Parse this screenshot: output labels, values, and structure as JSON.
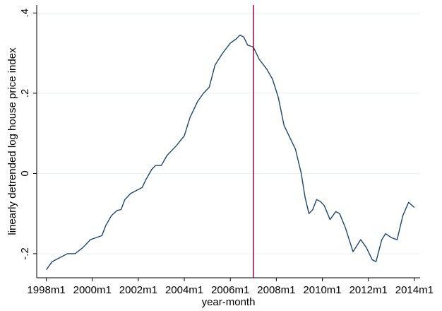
{
  "chart_data": {
    "type": "line",
    "xlabel": "year-month",
    "ylabel": "linearly detrended log house price index",
    "x": [
      "1998m1",
      "1998m4",
      "1998m8",
      "1998m12",
      "1999m4",
      "1999m8",
      "1999m12",
      "2000m3",
      "2000m6",
      "2000m8",
      "2000m11",
      "2001m2",
      "2001m4",
      "2001m6",
      "2001m9",
      "2002m1",
      "2002m3",
      "2002m5",
      "2002m8",
      "2002m10",
      "2003m1",
      "2003m4",
      "2003m9",
      "2004m1",
      "2004m4",
      "2004m8",
      "2004m11",
      "2005m2",
      "2005m5",
      "2005m9",
      "2006m1",
      "2006m4",
      "2006m6",
      "2006m8",
      "2006m10",
      "2007m1",
      "2007m4",
      "2007m8",
      "2007m11",
      "2008m2",
      "2008m5",
      "2008m8",
      "2008m11",
      "2009m2",
      "2009m4",
      "2009m6",
      "2009m8",
      "2009m10",
      "2009m12",
      "2010m2",
      "2010m5",
      "2010m8",
      "2010m10",
      "2011m1",
      "2011m3",
      "2011m5",
      "2011m9",
      "2011m12",
      "2012m3",
      "2012m5",
      "2012m8",
      "2012m10",
      "2013m1",
      "2013m4",
      "2013m7",
      "2013m10",
      "2014m1"
    ],
    "series": [
      {
        "color": "#1a476f",
        "values": [
          -0.24,
          -0.22,
          -0.21,
          -0.2,
          -0.2,
          -0.185,
          -0.165,
          -0.16,
          -0.155,
          -0.13,
          -0.105,
          -0.092,
          -0.09,
          -0.065,
          -0.05,
          -0.04,
          -0.035,
          -0.015,
          0.01,
          0.02,
          0.02,
          0.045,
          0.07,
          0.094,
          0.14,
          0.18,
          0.2,
          0.215,
          0.27,
          0.3,
          0.325,
          0.335,
          0.345,
          0.34,
          0.32,
          0.315,
          0.285,
          0.26,
          0.235,
          0.19,
          0.12,
          0.09,
          0.06,
          0.0,
          -0.06,
          -0.1,
          -0.09,
          -0.065,
          -0.07,
          -0.08,
          -0.115,
          -0.095,
          -0.1,
          -0.135,
          -0.165,
          -0.195,
          -0.165,
          -0.185,
          -0.215,
          -0.22,
          -0.165,
          -0.15,
          -0.16,
          -0.165,
          -0.105,
          -0.072,
          -0.085
        ]
      }
    ],
    "xlim": [
      "1997m8",
      "2014m4"
    ],
    "xticks": [
      "1998m1",
      "2000m1",
      "2002m1",
      "2004m1",
      "2006m1",
      "2008m1",
      "2010m1",
      "2012m1",
      "2014m1"
    ],
    "ylim": [
      -0.26,
      0.42
    ],
    "yticks": [
      {
        "value": -0.2,
        "label": "-.2"
      },
      {
        "value": 0,
        "label": "0"
      },
      {
        "value": 0.2,
        "label": ".2"
      },
      {
        "value": 0.4,
        "label": ".4"
      }
    ],
    "grid": true,
    "vline": {
      "x": "2007m1",
      "color": "#990044"
    }
  }
}
